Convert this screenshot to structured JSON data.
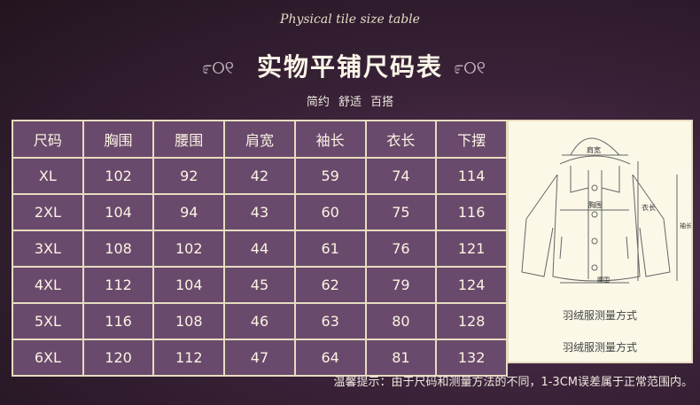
{
  "header": {
    "subtitle_en": "Physical tile size table",
    "title": "实物平铺尺码表",
    "tagline": "简约  舒适  百搭"
  },
  "table": {
    "columns": [
      "尺码",
      "胸围",
      "腰围",
      "肩宽",
      "袖长",
      "衣长",
      "下摆"
    ],
    "rows": [
      [
        "XL",
        "102",
        "92",
        "42",
        "59",
        "74",
        "114"
      ],
      [
        "2XL",
        "104",
        "94",
        "43",
        "60",
        "75",
        "116"
      ],
      [
        "3XL",
        "108",
        "102",
        "44",
        "61",
        "76",
        "121"
      ],
      [
        "4XL",
        "112",
        "104",
        "45",
        "62",
        "79",
        "124"
      ],
      [
        "5XL",
        "116",
        "108",
        "46",
        "63",
        "80",
        "128"
      ],
      [
        "6XL",
        "120",
        "112",
        "47",
        "64",
        "81",
        "132"
      ]
    ]
  },
  "diagram": {
    "labels": {
      "shoulder": "肩宽",
      "chest": "胸围",
      "length": "衣长",
      "sleeve": "袖长",
      "hem": "腰围"
    },
    "caption1": "羽绒服测量方式",
    "caption2": "羽绒服测量方式"
  },
  "footer": {
    "note": "温馨提示：由于尺码和测量方法的不同，1-3CM误差属于正常范围内。"
  },
  "colors": {
    "cell": "#6a4a6c",
    "border": "#e7dcc0",
    "panel": "#fbf8e8"
  }
}
